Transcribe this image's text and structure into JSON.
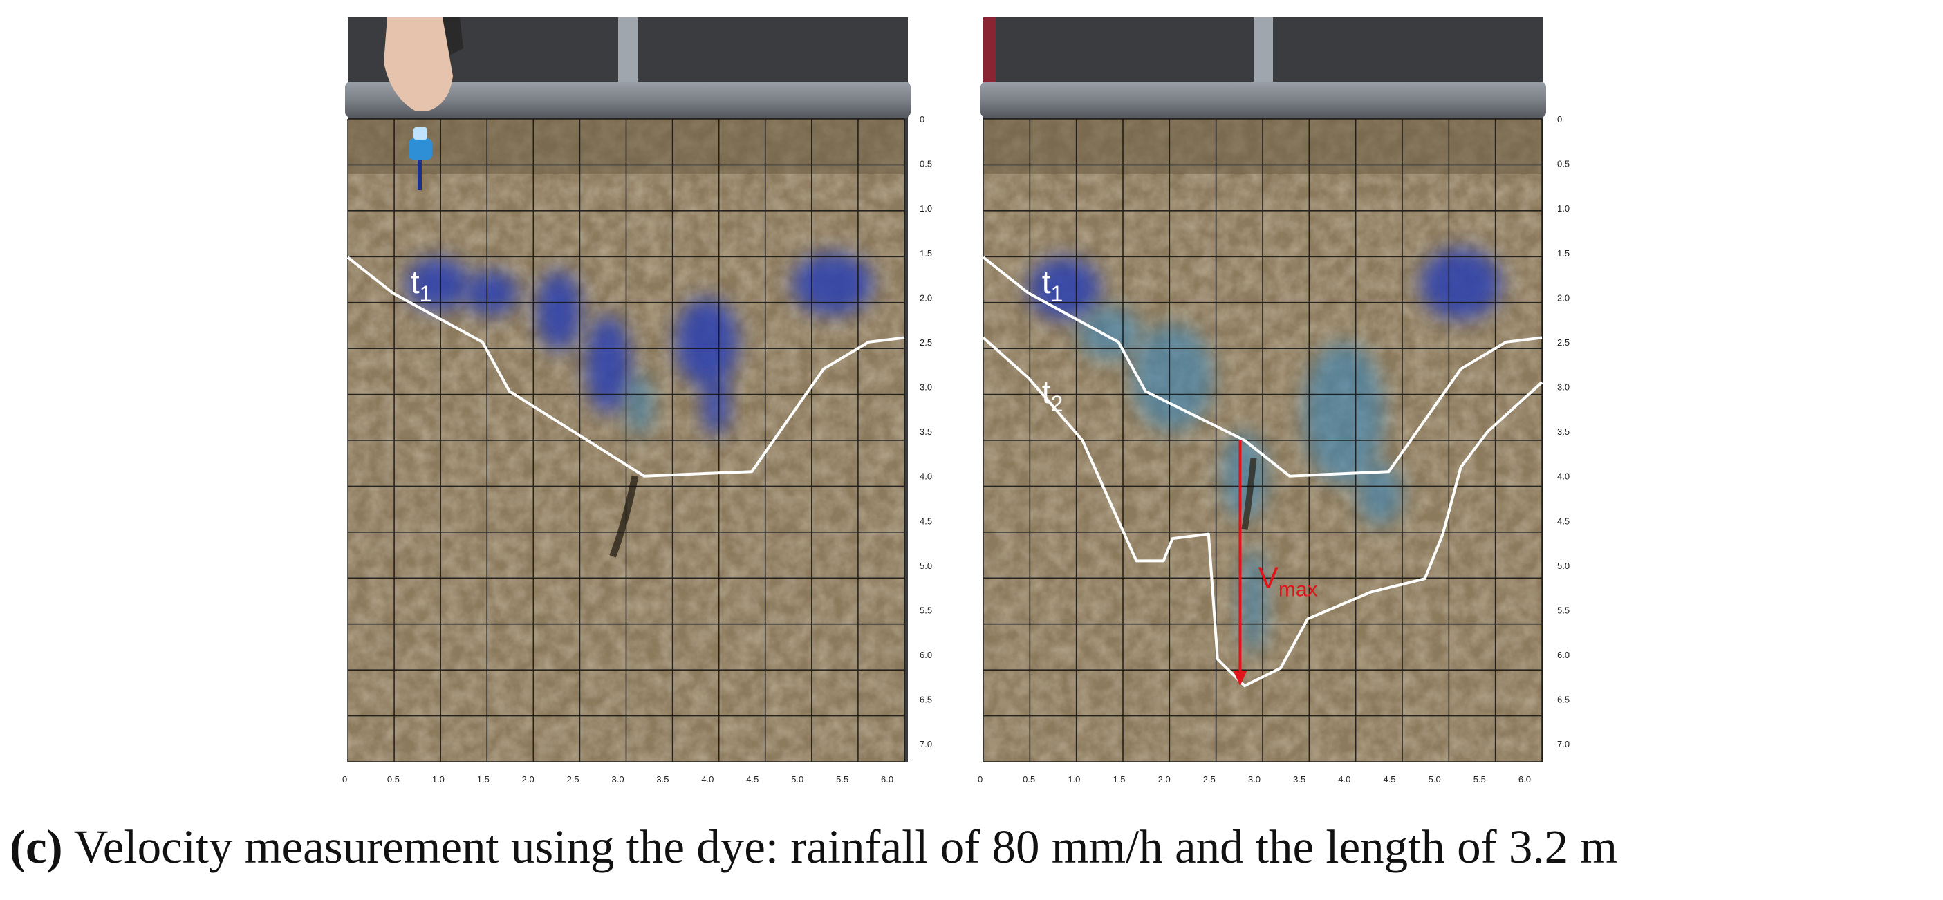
{
  "colors": {
    "soil": "#8c7a5d",
    "soil_dark": "#6b5c44",
    "flume": "#3a3c3f",
    "pipe": "#7d8188",
    "grid": "#111111",
    "boundary": "#ffffff",
    "dye_dark": "#2a3fb0",
    "dye_light": "#3a86b8",
    "vmax_arrow": "#e1141c"
  },
  "axis": {
    "x_ticks": [
      "0",
      "0.5",
      "1.0",
      "1.5",
      "2.0",
      "2.5",
      "3.0",
      "3.5",
      "4.0",
      "4.5",
      "5.0",
      "5.5",
      "6.0"
    ],
    "y_ticks": [
      "0",
      "0.5",
      "1.0",
      "1.5",
      "2.0",
      "2.5",
      "3.0",
      "3.5",
      "4.0",
      "4.5",
      "5.0",
      "5.5",
      "6.0",
      "6.5",
      "7.0"
    ],
    "x_range": [
      0,
      6.2
    ],
    "y_range": [
      0,
      7.2
    ]
  },
  "panels": [
    {
      "id": "left",
      "labels": [
        {
          "text": "t",
          "sub": "1",
          "at": [
            0.7,
            1.75
          ]
        }
      ],
      "fronts": [
        [
          [
            0,
            1.55
          ],
          [
            0.5,
            1.95
          ],
          [
            1.5,
            2.5
          ],
          [
            1.8,
            3.05
          ],
          [
            3.3,
            4.0
          ],
          [
            4.5,
            3.95
          ],
          [
            5.3,
            2.8
          ],
          [
            5.8,
            2.5
          ],
          [
            6.2,
            2.45
          ]
        ]
      ],
      "dye": [
        {
          "x": 1.0,
          "y": 1.85,
          "rx": 0.35,
          "ry": 0.3,
          "c": "dark"
        },
        {
          "x": 1.6,
          "y": 1.95,
          "rx": 0.3,
          "ry": 0.25,
          "c": "dark"
        },
        {
          "x": 2.35,
          "y": 2.15,
          "rx": 0.25,
          "ry": 0.45,
          "c": "dark"
        },
        {
          "x": 2.9,
          "y": 2.75,
          "rx": 0.25,
          "ry": 0.55,
          "c": "dark"
        },
        {
          "x": 3.25,
          "y": 3.2,
          "rx": 0.15,
          "ry": 0.35,
          "c": "light"
        },
        {
          "x": 4.0,
          "y": 2.5,
          "rx": 0.35,
          "ry": 0.5,
          "c": "dark"
        },
        {
          "x": 4.1,
          "y": 3.2,
          "rx": 0.15,
          "ry": 0.35,
          "c": "dark"
        },
        {
          "x": 5.4,
          "y": 1.85,
          "rx": 0.45,
          "ry": 0.35,
          "c": "dark"
        }
      ],
      "has_hand": true,
      "has_arrow": false
    },
    {
      "id": "right",
      "labels": [
        {
          "text": "t",
          "sub": "1",
          "at": [
            0.65,
            1.75
          ]
        },
        {
          "text": "t",
          "sub": "2",
          "at": [
            0.65,
            2.98
          ]
        },
        {
          "text": "V",
          "sub": "max",
          "at": [
            3.05,
            5.05
          ],
          "color": "red"
        }
      ],
      "fronts": [
        [
          [
            0,
            1.55
          ],
          [
            0.5,
            1.95
          ],
          [
            1.5,
            2.5
          ],
          [
            1.8,
            3.05
          ],
          [
            2.9,
            3.6
          ],
          [
            3.4,
            4.0
          ],
          [
            4.5,
            3.95
          ],
          [
            5.3,
            2.8
          ],
          [
            5.8,
            2.5
          ],
          [
            6.2,
            2.45
          ]
        ],
        [
          [
            0,
            2.45
          ],
          [
            0.5,
            2.9
          ],
          [
            1.1,
            3.6
          ],
          [
            1.7,
            4.95
          ],
          [
            2.0,
            4.95
          ],
          [
            2.1,
            4.7
          ],
          [
            2.5,
            4.65
          ],
          [
            2.6,
            6.05
          ],
          [
            2.9,
            6.35
          ],
          [
            3.3,
            6.15
          ],
          [
            3.6,
            5.6
          ],
          [
            4.3,
            5.3
          ],
          [
            4.9,
            5.15
          ],
          [
            5.1,
            4.65
          ],
          [
            5.3,
            3.9
          ],
          [
            5.6,
            3.5
          ],
          [
            6.2,
            2.95
          ]
        ]
      ],
      "dye": [
        {
          "x": 0.9,
          "y": 1.9,
          "rx": 0.4,
          "ry": 0.35,
          "c": "dark"
        },
        {
          "x": 1.4,
          "y": 2.4,
          "rx": 0.35,
          "ry": 0.3,
          "c": "light"
        },
        {
          "x": 2.1,
          "y": 2.9,
          "rx": 0.45,
          "ry": 0.6,
          "c": "light"
        },
        {
          "x": 2.9,
          "y": 4.0,
          "rx": 0.25,
          "ry": 0.5,
          "c": "light"
        },
        {
          "x": 3.0,
          "y": 5.4,
          "rx": 0.15,
          "ry": 0.6,
          "c": "light"
        },
        {
          "x": 4.0,
          "y": 3.3,
          "rx": 0.45,
          "ry": 0.8,
          "c": "light"
        },
        {
          "x": 4.4,
          "y": 4.2,
          "rx": 0.25,
          "ry": 0.35,
          "c": "light"
        },
        {
          "x": 5.3,
          "y": 1.85,
          "rx": 0.45,
          "ry": 0.4,
          "c": "dark"
        }
      ],
      "has_hand": false,
      "has_arrow": true,
      "arrow": {
        "x": 2.85,
        "y_from": 3.6,
        "y_to": 6.35
      }
    }
  ],
  "caption": {
    "letter": "(c)",
    "text": " Velocity measurement using the dye: rainfall of 80 mm/h and the length of 3.2 m"
  }
}
